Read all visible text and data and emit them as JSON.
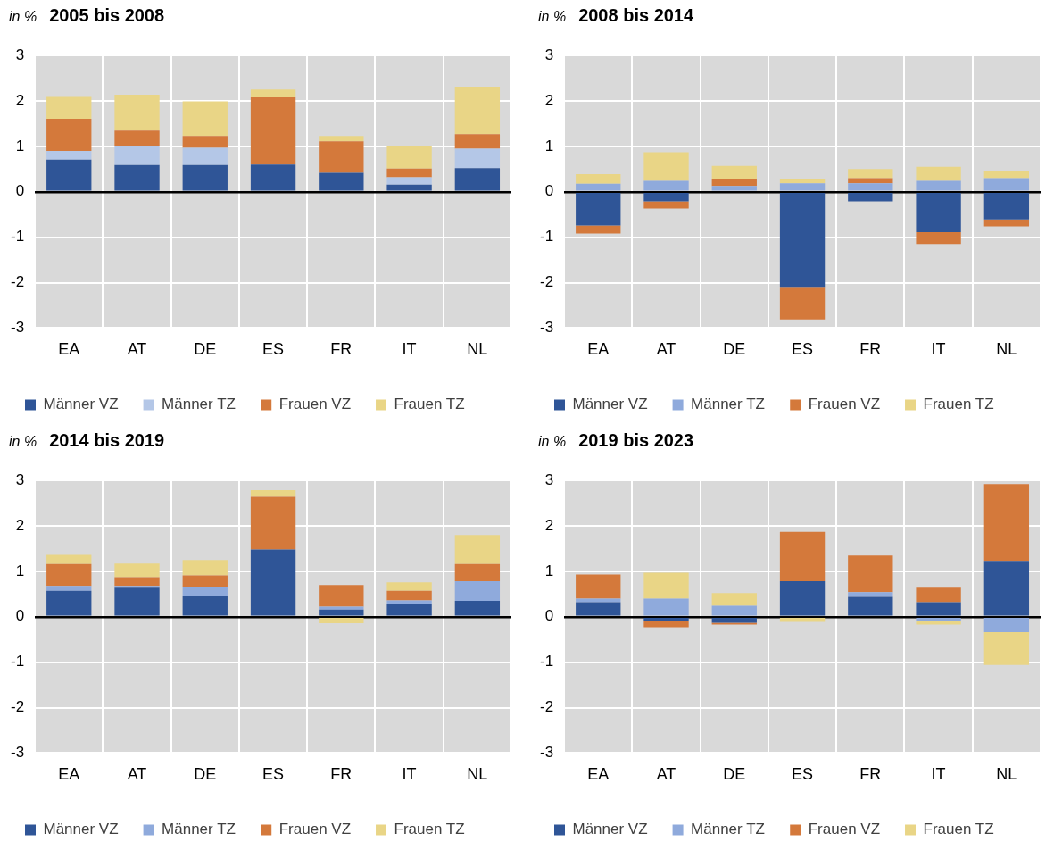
{
  "chart_data": [
    {
      "type": "bar",
      "title": "2005 bis 2008",
      "ylabel": "in %",
      "categories": [
        "EA",
        "AT",
        "DE",
        "ES",
        "FR",
        "IT",
        "NL"
      ],
      "stacked": true,
      "ylim": [
        -3,
        3
      ],
      "yticks": [
        -3,
        -2,
        -1,
        0,
        1,
        2,
        3
      ],
      "grid": true,
      "legend": "bottom",
      "series": [
        {
          "name": "Männer VZ",
          "color": "#2f5597",
          "values": [
            0.71,
            0.59,
            0.59,
            0.6,
            0.42,
            0.16,
            0.52
          ]
        },
        {
          "name": "Männer TZ",
          "color": "#b4c7e7",
          "values": [
            0.19,
            0.41,
            0.38,
            0,
            null,
            0.16,
            0.43
          ]
        },
        {
          "name": "Frauen VZ",
          "color": "#d4793b",
          "values": [
            0.71,
            0.35,
            0.26,
            1.48,
            0.69,
            0.19,
            0.32
          ]
        },
        {
          "name": "Frauen TZ",
          "color": "#e9d586",
          "values": [
            0.48,
            0.79,
            0.76,
            0.17,
            0.12,
            0.5,
            1.03
          ]
        }
      ]
    },
    {
      "type": "bar",
      "title": "2008 bis 2014",
      "ylabel": "in %",
      "categories": [
        "EA",
        "AT",
        "DE",
        "ES",
        "FR",
        "IT",
        "NL"
      ],
      "stacked": true,
      "ylim": [
        -3,
        3
      ],
      "yticks": [
        -3,
        -2,
        -1,
        0,
        1,
        2,
        3
      ],
      "grid": true,
      "legend": "bottom",
      "series": [
        {
          "name": "Männer VZ",
          "color": "#2f5597",
          "values": [
            -0.74,
            -0.21,
            null,
            -2.11,
            -0.21,
            -0.89,
            -0.61
          ]
        },
        {
          "name": "Männer TZ",
          "color": "#8faadc",
          "values": [
            0.18,
            0.24,
            0.13,
            0.19,
            0.19,
            0.24,
            0.3
          ]
        },
        {
          "name": "Frauen VZ",
          "color": "#d4793b",
          "values": [
            -0.18,
            -0.16,
            0.14,
            -0.7,
            0.11,
            -0.26,
            -0.15
          ]
        },
        {
          "name": "Frauen TZ",
          "color": "#e9d586",
          "values": [
            0.21,
            0.63,
            0.3,
            0.1,
            0.2,
            0.31,
            0.17
          ]
        }
      ]
    },
    {
      "type": "bar",
      "title": "2014 bis 2019",
      "ylabel": "in %",
      "categories": [
        "EA",
        "AT",
        "DE",
        "ES",
        "FR",
        "IT",
        "NL"
      ],
      "stacked": true,
      "ylim": [
        -3,
        3
      ],
      "yticks": [
        -3,
        -2,
        -1,
        0,
        1,
        2,
        3
      ],
      "grid": true,
      "legend": "bottom",
      "series": [
        {
          "name": "Männer VZ",
          "color": "#2f5597",
          "values": [
            0.57,
            0.64,
            0.45,
            1.48,
            0.16,
            0.28,
            0.35
          ]
        },
        {
          "name": "Männer TZ",
          "color": "#8faadc",
          "values": [
            0.11,
            0.04,
            0.2,
            null,
            0.06,
            0.08,
            0.43
          ]
        },
        {
          "name": "Frauen VZ",
          "color": "#d4793b",
          "values": [
            0.48,
            0.19,
            0.26,
            1.16,
            0.48,
            0.21,
            0.38
          ]
        },
        {
          "name": "Frauen TZ",
          "color": "#e9d586",
          "values": [
            0.2,
            0.3,
            0.34,
            0.15,
            -0.14,
            0.19,
            0.64
          ]
        }
      ]
    },
    {
      "type": "bar",
      "title": "2019 bis 2023",
      "ylabel": "in %",
      "categories": [
        "EA",
        "AT",
        "DE",
        "ES",
        "FR",
        "IT",
        "NL"
      ],
      "stacked": true,
      "ylim": [
        -3,
        3
      ],
      "yticks": [
        -3,
        -2,
        -1,
        0,
        1,
        2,
        3
      ],
      "grid": true,
      "legend": "bottom",
      "series": [
        {
          "name": "Männer VZ",
          "color": "#2f5597",
          "values": [
            0.32,
            -0.09,
            -0.13,
            0.78,
            0.44,
            0.32,
            1.23
          ]
        },
        {
          "name": "Männer TZ",
          "color": "#8faadc",
          "values": [
            0.08,
            0.4,
            0.24,
            0,
            0.1,
            -0.09,
            -0.34
          ]
        },
        {
          "name": "Frauen VZ",
          "color": "#d4793b",
          "values": [
            0.53,
            -0.14,
            -0.04,
            1.09,
            0.81,
            0.32,
            1.69
          ]
        },
        {
          "name": "Frauen TZ",
          "color": "#e9d586",
          "values": [
            0,
            0.57,
            0.28,
            -0.11,
            0,
            -0.08,
            -0.72
          ]
        }
      ]
    }
  ]
}
